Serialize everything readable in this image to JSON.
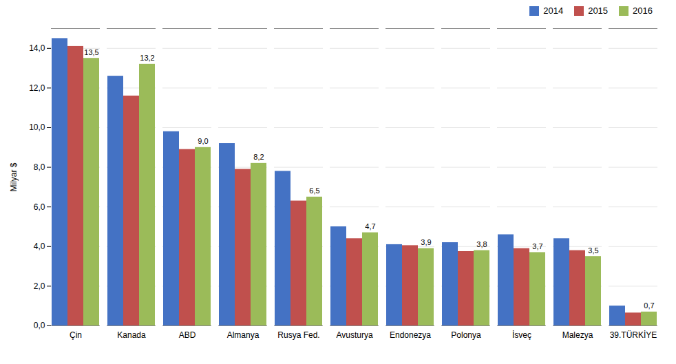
{
  "chart_data": {
    "type": "bar",
    "categories": [
      "Çin",
      "Kanada",
      "ABD",
      "Almanya",
      "Rusya Fed.",
      "Avusturya",
      "Endonezya",
      "Polonya",
      "İsveç",
      "Malezya",
      "39.TÜRKİYE"
    ],
    "series": [
      {
        "name": "2014",
        "color": "#4472C4",
        "values": [
          14.5,
          12.6,
          9.8,
          9.2,
          7.8,
          5.0,
          4.1,
          4.2,
          4.6,
          4.4,
          1.0
        ]
      },
      {
        "name": "2015",
        "color": "#C0504D",
        "values": [
          14.1,
          11.6,
          8.9,
          7.9,
          6.3,
          4.4,
          4.05,
          3.75,
          3.9,
          3.8,
          0.65
        ]
      },
      {
        "name": "2016",
        "color": "#9BBB59",
        "values": [
          13.5,
          13.2,
          9.0,
          8.2,
          6.5,
          4.7,
          3.9,
          3.8,
          3.7,
          3.5,
          0.7
        ],
        "value_labels": [
          "13,5",
          "13,2",
          "9,0",
          "8,2",
          "6,5",
          "4,7",
          "3,9",
          "3,8",
          "3,7",
          "3,5",
          "0,7"
        ]
      }
    ],
    "ylabel": "Milyar $",
    "ylim": [
      0,
      15.0
    ],
    "yticks": [
      {
        "value": 0.0,
        "label": "0,0"
      },
      {
        "value": 2.0,
        "label": "2,0"
      },
      {
        "value": 4.0,
        "label": "4,0"
      },
      {
        "value": 6.0,
        "label": "6,0"
      },
      {
        "value": 8.0,
        "label": "8,0"
      },
      {
        "value": 10.0,
        "label": "10,0"
      },
      {
        "value": 12.0,
        "label": "12,0"
      },
      {
        "value": 14.0,
        "label": "14,0"
      }
    ],
    "grid": true,
    "legend": "upper right"
  }
}
